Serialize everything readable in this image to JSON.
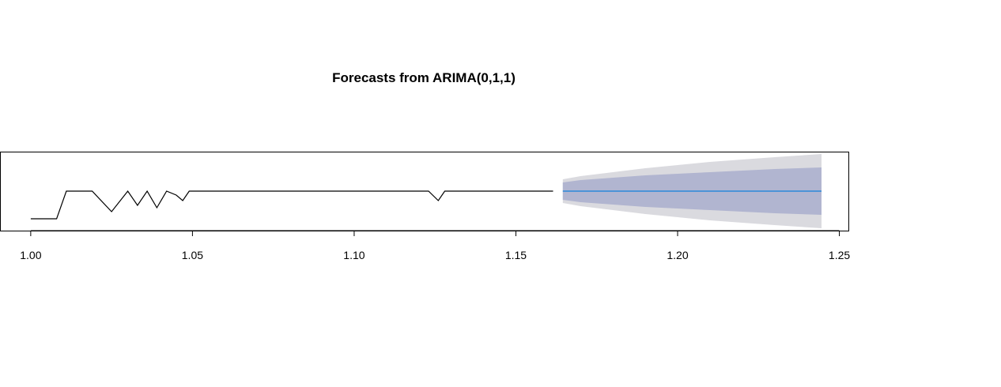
{
  "chart_data": {
    "type": "line",
    "title": "Forecasts from ARIMA(0,1,1)",
    "xlabel": "",
    "ylabel": "",
    "xlim": [
      0.9905,
      1.2528
    ],
    "ylim": [
      0,
      1
    ],
    "x_ticks": [
      1.0,
      1.05,
      1.1,
      1.15,
      1.2,
      1.25
    ],
    "x_tick_labels": [
      "1.00",
      "1.05",
      "1.10",
      "1.15",
      "1.20",
      "1.25"
    ],
    "y_axis_shown": false,
    "grid": false,
    "legend": "none",
    "colors": {
      "observed": "#000000",
      "forecast": "#2b8ad9",
      "band80": "#b1b5d0",
      "band95": "#dadadf",
      "frame": "#000000"
    },
    "series": [
      {
        "x": [
          1.0,
          1.008,
          1.011,
          1.019,
          1.025,
          1.03,
          1.033,
          1.036,
          1.039,
          1.042,
          1.045,
          1.047,
          1.049,
          1.123,
          1.126,
          1.128,
          1.1615
        ],
        "values": [
          0.15,
          0.15,
          0.5,
          0.5,
          0.24,
          0.5,
          0.32,
          0.5,
          0.29,
          0.5,
          0.45,
          0.38,
          0.5,
          0.5,
          0.38,
          0.5,
          0.5
        ]
      }
    ],
    "forecast": {
      "x": [
        1.1645,
        1.17,
        1.18,
        1.19,
        1.2,
        1.21,
        1.22,
        1.23,
        1.2445
      ],
      "mean": [
        0.5,
        0.5,
        0.5,
        0.5,
        0.5,
        0.5,
        0.5,
        0.5,
        0.5
      ],
      "lo80": [
        0.39,
        0.36,
        0.33,
        0.3,
        0.28,
        0.26,
        0.24,
        0.22,
        0.2
      ],
      "hi80": [
        0.61,
        0.64,
        0.67,
        0.7,
        0.72,
        0.74,
        0.76,
        0.78,
        0.8
      ],
      "lo95": [
        0.35,
        0.31,
        0.26,
        0.21,
        0.17,
        0.13,
        0.1,
        0.07,
        0.03
      ],
      "hi95": [
        0.65,
        0.69,
        0.74,
        0.79,
        0.83,
        0.87,
        0.9,
        0.93,
        0.97
      ]
    }
  }
}
